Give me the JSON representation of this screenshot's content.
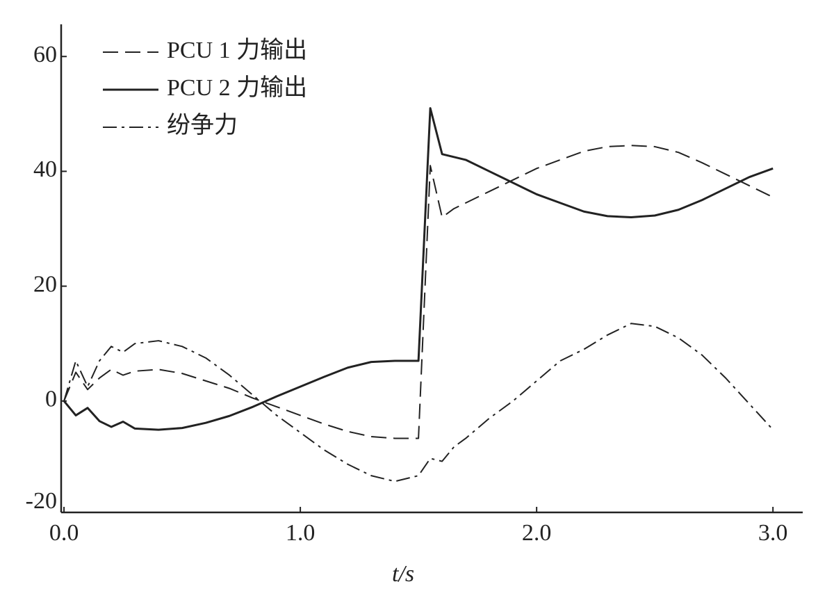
{
  "chart_data": {
    "type": "line",
    "x_label": "t/s",
    "x": [
      0,
      0.05,
      0.1,
      0.15,
      0.2,
      0.25,
      0.3,
      0.4,
      0.5,
      0.6,
      0.7,
      0.8,
      0.9,
      1.0,
      1.1,
      1.2,
      1.3,
      1.4,
      1.5,
      1.55,
      1.6,
      1.65,
      1.7,
      1.8,
      1.9,
      2.0,
      2.1,
      2.2,
      2.3,
      2.4,
      2.5,
      2.6,
      2.7,
      2.8,
      2.9,
      3.0
    ],
    "series": [
      {
        "name": "PCU 1 力输出",
        "color": "#222222",
        "dash": "dashed",
        "values": [
          0,
          5,
          2,
          4,
          5.5,
          4.5,
          5.2,
          5.5,
          4.8,
          3.5,
          2.2,
          0.5,
          -1,
          -2.5,
          -4,
          -5.3,
          -6.2,
          -6.5,
          -6.5,
          41,
          32,
          33.5,
          34.5,
          36.5,
          38.5,
          40.5,
          42,
          43.5,
          44.3,
          44.5,
          44.3,
          43.3,
          41.5,
          39.5,
          37.5,
          35.5
        ]
      },
      {
        "name": "PCU 2 力输出",
        "color": "#222222",
        "dash": "solid",
        "values": [
          0,
          -2.5,
          -1.2,
          -3.5,
          -4.5,
          -3.6,
          -4.8,
          -5,
          -4.7,
          -3.8,
          -2.6,
          -1,
          0.8,
          2.5,
          4.2,
          5.8,
          6.8,
          7,
          7,
          51,
          43,
          42.5,
          42,
          40,
          38,
          36,
          34.5,
          33,
          32.2,
          32,
          32.3,
          33.3,
          35,
          37,
          39,
          40.5
        ]
      },
      {
        "name": "纷争力",
        "color": "#222222",
        "dash": "dashdot",
        "values": [
          0,
          7,
          2.5,
          7,
          9.5,
          8.5,
          10,
          10.5,
          9.5,
          7.5,
          4.5,
          1,
          -2.5,
          -5.5,
          -8.5,
          -11,
          -13,
          -14,
          -13,
          -10,
          -10.5,
          -8,
          -6.5,
          -3,
          0,
          3.5,
          7,
          9,
          11.5,
          13.5,
          13,
          11,
          8,
          4,
          -0.5,
          -5
        ]
      }
    ],
    "xlim": [
      -0.012,
      3.126
    ],
    "ylim": [
      -19.4,
      65.6
    ],
    "xticks": [
      {
        "value": 0,
        "label": "0.0"
      },
      {
        "value": 1,
        "label": "1.0"
      },
      {
        "value": 2,
        "label": "2.0"
      },
      {
        "value": 3,
        "label": "3.0"
      }
    ],
    "yticks": [
      -20,
      0,
      20,
      40,
      60
    ],
    "legend": "upper left",
    "grid": false
  }
}
